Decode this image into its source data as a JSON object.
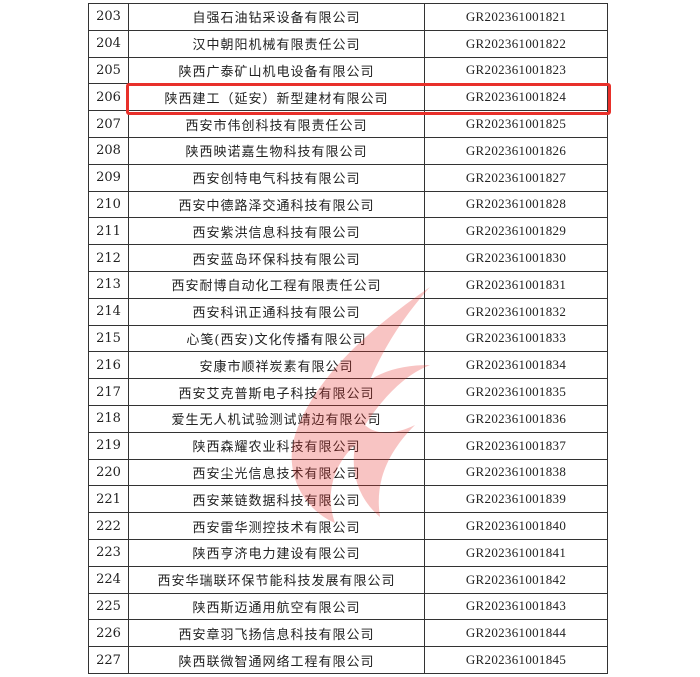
{
  "rows": [
    {
      "no": "203",
      "name": "自强石油钻采设备有限公司",
      "code": "GR202361001821"
    },
    {
      "no": "204",
      "name": "汉中朝阳机械有限责任公司",
      "code": "GR202361001822"
    },
    {
      "no": "205",
      "name": "陕西广泰矿山机电设备有限公司",
      "code": "GR202361001823"
    },
    {
      "no": "206",
      "name": "陕西建工（延安）新型建材有限公司",
      "code": "GR202361001824"
    },
    {
      "no": "207",
      "name": "西安市伟创科技有限责任公司",
      "code": "GR202361001825"
    },
    {
      "no": "208",
      "name": "陕西映诺嘉生物科技有限公司",
      "code": "GR202361001826"
    },
    {
      "no": "209",
      "name": "西安创特电气科技有限公司",
      "code": "GR202361001827"
    },
    {
      "no": "210",
      "name": "西安中德路泽交通科技有限公司",
      "code": "GR202361001828"
    },
    {
      "no": "211",
      "name": "西安紫洪信息科技有限公司",
      "code": "GR202361001829"
    },
    {
      "no": "212",
      "name": "西安蓝岛环保科技有限公司",
      "code": "GR202361001830"
    },
    {
      "no": "213",
      "name": "西安耐博自动化工程有限责任公司",
      "code": "GR202361001831"
    },
    {
      "no": "214",
      "name": "西安科讯正通科技有限公司",
      "code": "GR202361001832"
    },
    {
      "no": "215",
      "name": "心笺(西安)文化传播有限公司",
      "code": "GR202361001833"
    },
    {
      "no": "216",
      "name": "安康市顺祥炭素有限公司",
      "code": "GR202361001834"
    },
    {
      "no": "217",
      "name": "西安艾克普斯电子科技有限公司",
      "code": "GR202361001835"
    },
    {
      "no": "218",
      "name": "爱生无人机试验测试靖边有限公司",
      "code": "GR202361001836"
    },
    {
      "no": "219",
      "name": "陕西森耀农业科技有限公司",
      "code": "GR202361001837"
    },
    {
      "no": "220",
      "name": "西安尘光信息技术有限公司",
      "code": "GR202361001838"
    },
    {
      "no": "221",
      "name": "西安莱链数据科技有限公司",
      "code": "GR202361001839"
    },
    {
      "no": "222",
      "name": "西安雷华测控技术有限公司",
      "code": "GR202361001840"
    },
    {
      "no": "223",
      "name": "陕西亨济电力建设有限公司",
      "code": "GR202361001841"
    },
    {
      "no": "224",
      "name": "西安华瑞联环保节能科技发展有限公司",
      "code": "GR202361001842"
    },
    {
      "no": "225",
      "name": "陕西斯迈通用航空有限公司",
      "code": "GR202361001843"
    },
    {
      "no": "226",
      "name": "西安章羽飞扬信息科技有限公司",
      "code": "GR202361001844"
    },
    {
      "no": "227",
      "name": "陕西联微智通网络工程有限公司",
      "code": "GR202361001845"
    }
  ],
  "highlight_color": "#e8302a",
  "watermark_color": "#e8302a"
}
